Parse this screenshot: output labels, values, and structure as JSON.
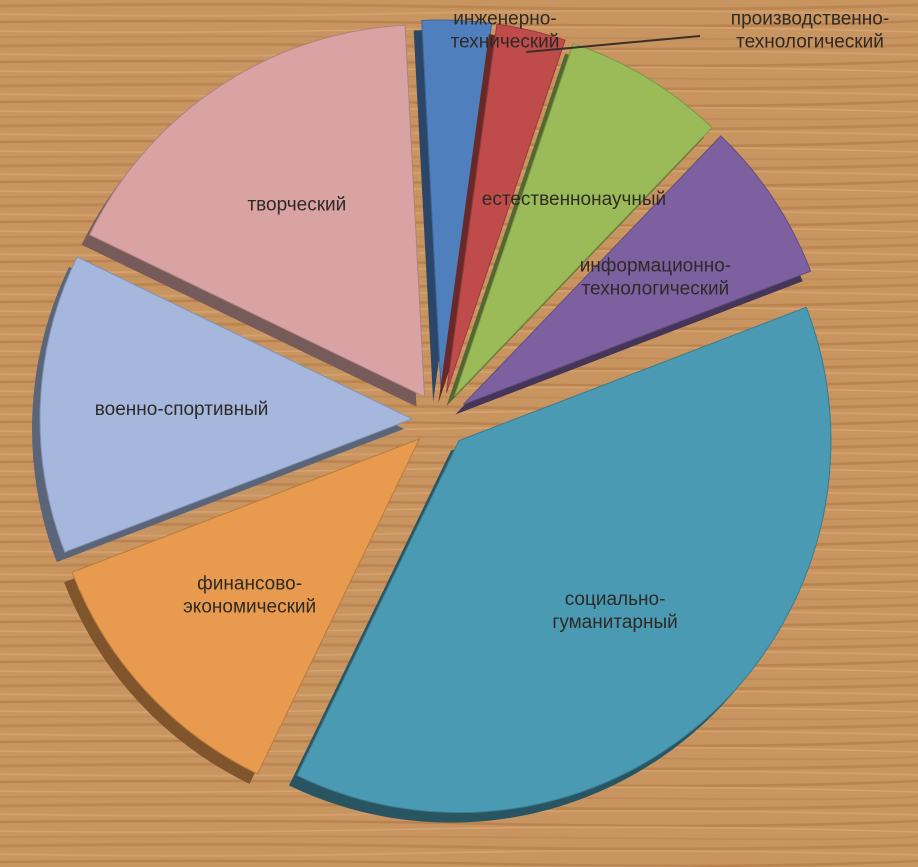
{
  "chart_data": {
    "type": "pie",
    "style": "3d-exploded",
    "background": "wood-texture",
    "title": "",
    "legend": "none",
    "slices": [
      {
        "name": "инженерно-технический",
        "label_lines": [
          "инженерно-",
          "технический"
        ],
        "value": 3,
        "color": "#4f7fbd"
      },
      {
        "name": "производственно-технологический",
        "label_lines": [
          "производственно-",
          "технологический"
        ],
        "value": 3,
        "color": "#bf4b4b"
      },
      {
        "name": "естественнонаучный",
        "label_lines": [
          "естественнонаучный"
        ],
        "value": 7,
        "color": "#9bbb59"
      },
      {
        "name": "информационно-технологический",
        "label_lines": [
          "информационно-",
          "технологический"
        ],
        "value": 7,
        "color": "#7d60a0"
      },
      {
        "name": "социально-гуманитарный",
        "label_lines": [
          "социально-",
          "гуманитарный"
        ],
        "value": 38,
        "color": "#4a9ab3"
      },
      {
        "name": "финансово-экономический",
        "label_lines": [
          "финансово-",
          "экономический"
        ],
        "value": 12,
        "color": "#e89a4e"
      },
      {
        "name": "военно-спортивный",
        "label_lines": [
          "военно-спортивный"
        ],
        "value": 13,
        "color": "#a5b7dd"
      },
      {
        "name": "творческий",
        "label_lines": [
          "творческий"
        ],
        "value": 17,
        "color": "#d9a3a3"
      }
    ]
  }
}
